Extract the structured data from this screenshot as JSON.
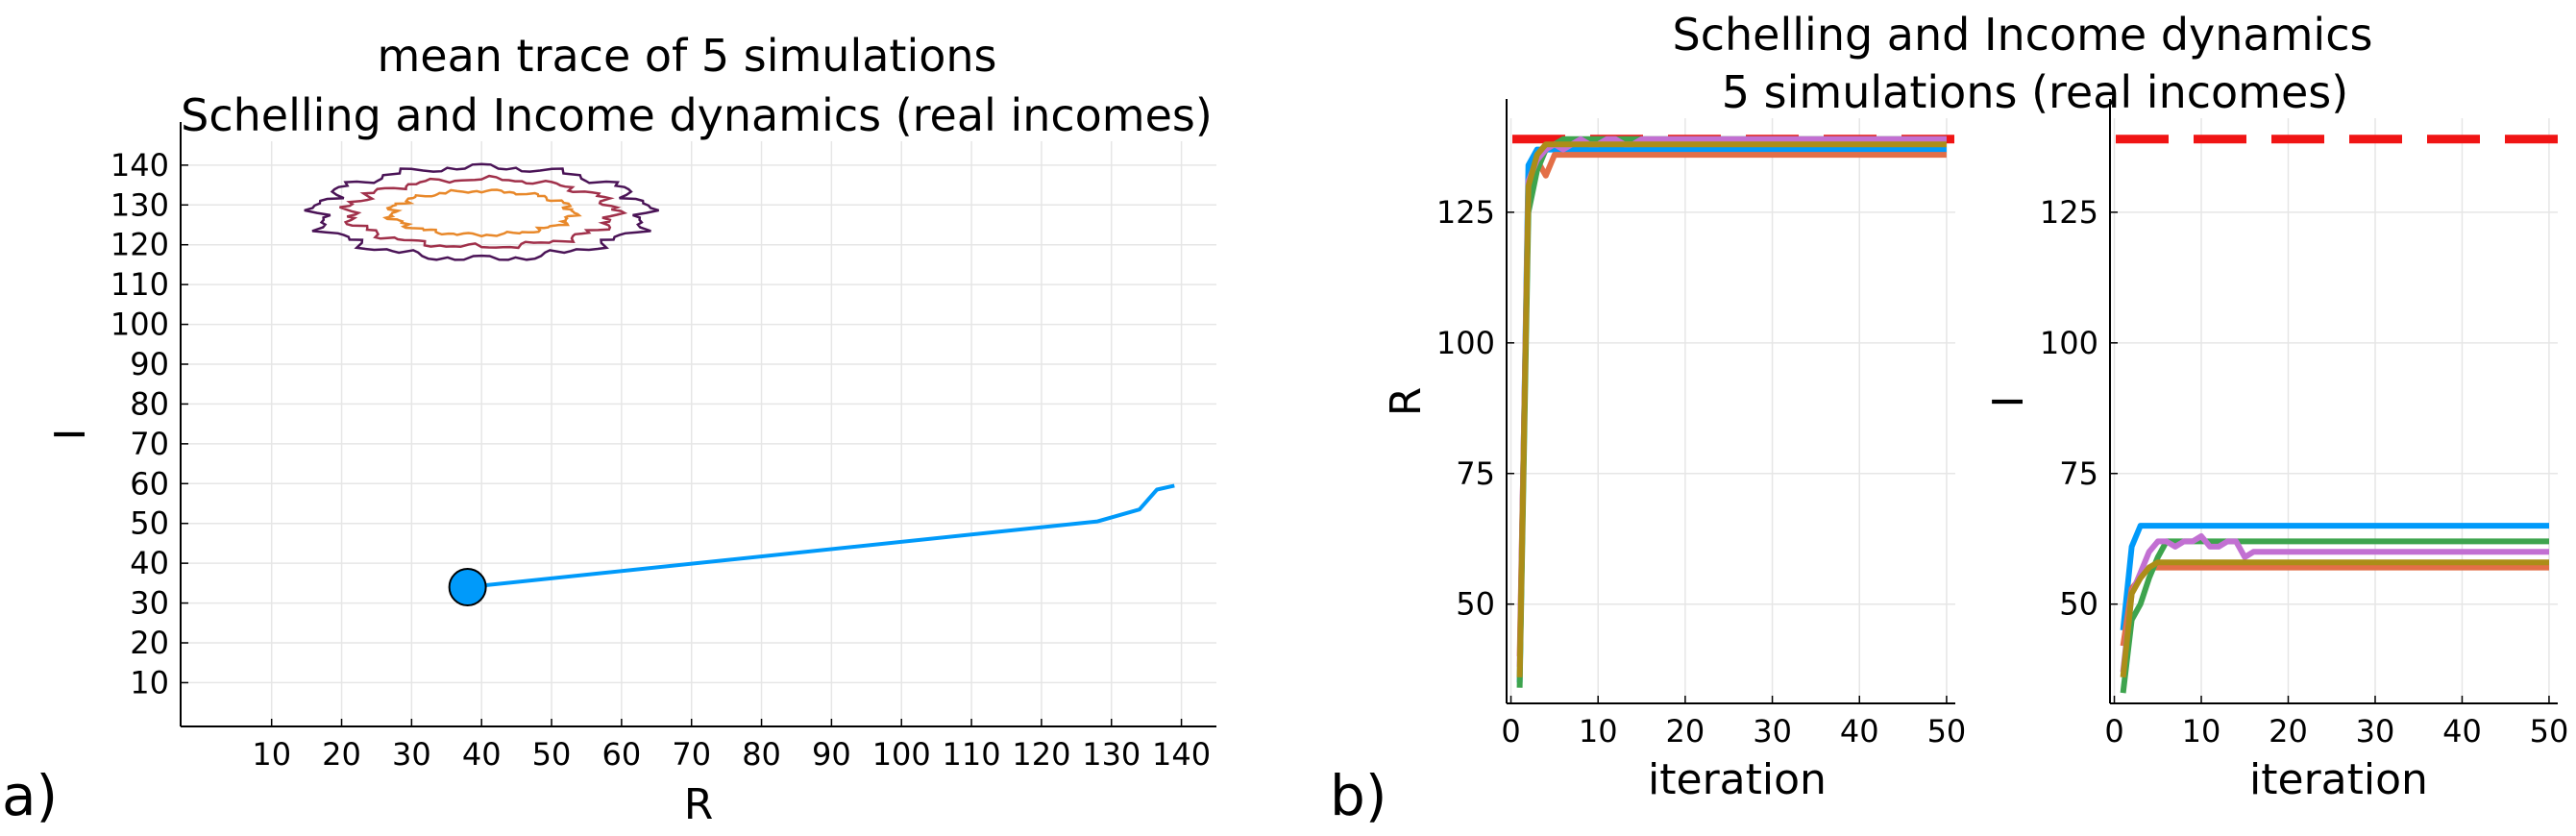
{
  "panel_labels": {
    "a": "a)",
    "b": "b)"
  },
  "series_colors": [
    "#009AFA",
    "#E36F47",
    "#3EA44E",
    "#C270D2",
    "#AC8D18"
  ],
  "chart_data": [
    {
      "type": "line",
      "title_lines": [
        "mean trace of 5 simulations",
        "Schelling and Income dynamics (real incomes)"
      ],
      "xlabel": "R",
      "ylabel": "I",
      "xlim": [
        -3,
        145
      ],
      "ylim": [
        -1,
        146
      ],
      "xticks": [
        10,
        20,
        30,
        40,
        50,
        60,
        70,
        80,
        90,
        100,
        110,
        120,
        130,
        140
      ],
      "yticks": [
        10,
        20,
        30,
        40,
        50,
        60,
        70,
        80,
        90,
        100,
        110,
        120,
        130,
        140
      ],
      "grid": true,
      "start_marker": {
        "x": 38,
        "y": 34,
        "color": "#009AFA"
      },
      "trace": {
        "color": "#009AFA",
        "x": [
          38,
          128,
          134,
          136.5,
          139
        ],
        "y": [
          34,
          50.5,
          53.5,
          58.5,
          59.5
        ]
      },
      "contours": [
        {
          "color": "#4A1356",
          "center": [
            40,
            128
          ],
          "rx": 23.5,
          "ry": 11.5
        },
        {
          "color": "#A0304A",
          "center": [
            40,
            128
          ],
          "rx": 19,
          "ry": 8.5
        },
        {
          "color": "#E8882A",
          "center": [
            40,
            128
          ],
          "rx": 13,
          "ry": 5.5
        }
      ]
    },
    {
      "type": "line",
      "title_lines": [
        "Schelling and Income dynamics",
        "5 simulations (real incomes)"
      ],
      "xlabel": "iteration",
      "ylabel": "R",
      "xlim": [
        -0.5,
        51
      ],
      "ylim": [
        31,
        143
      ],
      "xticks": [
        0,
        10,
        20,
        30,
        40,
        50
      ],
      "yticks": [
        50,
        75,
        100,
        125
      ],
      "grid": true,
      "reference_line": {
        "y": 139,
        "color": "#F01414"
      },
      "series": [
        {
          "values": [
            35,
            134,
            137,
            137,
            137,
            137,
            137,
            137,
            137,
            137,
            137,
            137,
            137,
            137,
            137,
            137,
            137,
            137,
            137,
            137,
            137,
            137,
            137,
            137,
            137,
            137,
            137,
            137,
            137,
            137,
            137,
            137,
            137,
            137,
            137,
            137,
            137,
            137,
            137,
            137,
            137,
            137,
            137,
            137,
            137,
            137,
            137,
            137,
            137,
            137
          ]
        },
        {
          "values": [
            40,
            128,
            135,
            132,
            136,
            136,
            136,
            136,
            136,
            136,
            136,
            136,
            136,
            136,
            136,
            136,
            136,
            136,
            136,
            136,
            136,
            136,
            136,
            136,
            136,
            136,
            136,
            136,
            136,
            136,
            136,
            136,
            136,
            136,
            136,
            136,
            136,
            136,
            136,
            136,
            136,
            136,
            136,
            136,
            136,
            136,
            136,
            136,
            136,
            136
          ]
        },
        {
          "values": [
            34,
            125,
            133,
            137,
            138,
            139,
            139,
            139,
            139,
            139,
            139,
            139,
            139,
            139,
            139,
            139,
            139,
            139,
            139,
            139,
            139,
            139,
            139,
            139,
            139,
            139,
            139,
            139,
            139,
            139,
            139,
            139,
            139,
            139,
            139,
            139,
            139,
            139,
            139,
            139,
            139,
            139,
            139,
            139,
            139,
            139,
            139,
            139,
            139,
            139
          ]
        },
        {
          "values": [
            38,
            131,
            135,
            137,
            138,
            137,
            138,
            139,
            138,
            138,
            139,
            139,
            138,
            138,
            139,
            139,
            139,
            139,
            139,
            139,
            139,
            139,
            139,
            139,
            139,
            139,
            139,
            139,
            139,
            139,
            139,
            139,
            139,
            139,
            139,
            139,
            139,
            139,
            139,
            139,
            139,
            139,
            139,
            139,
            139,
            139,
            139,
            139,
            139,
            139
          ]
        },
        {
          "values": [
            36,
            130,
            136,
            138,
            138,
            138,
            138,
            138,
            138,
            138,
            138,
            138,
            138,
            138,
            138,
            138,
            138,
            138,
            138,
            138,
            138,
            138,
            138,
            138,
            138,
            138,
            138,
            138,
            138,
            138,
            138,
            138,
            138,
            138,
            138,
            138,
            138,
            138,
            138,
            138,
            138,
            138,
            138,
            138,
            138,
            138,
            138,
            138,
            138,
            138
          ]
        }
      ]
    },
    {
      "type": "line",
      "title_lines": [],
      "xlabel": "iteration",
      "ylabel": "I",
      "xlim": [
        -0.5,
        51
      ],
      "ylim": [
        31,
        143
      ],
      "xticks": [
        0,
        10,
        20,
        30,
        40,
        50
      ],
      "yticks": [
        50,
        75,
        100,
        125
      ],
      "grid": true,
      "reference_line": {
        "y": 139,
        "color": "#F01414"
      },
      "series": [
        {
          "values": [
            45,
            61,
            65,
            65,
            65,
            65,
            65,
            65,
            65,
            65,
            65,
            65,
            65,
            65,
            65,
            65,
            65,
            65,
            65,
            65,
            65,
            65,
            65,
            65,
            65,
            65,
            65,
            65,
            65,
            65,
            65,
            65,
            65,
            65,
            65,
            65,
            65,
            65,
            65,
            65,
            65,
            65,
            65,
            65,
            65,
            65,
            65,
            65,
            65,
            65
          ]
        },
        {
          "values": [
            42,
            53,
            55,
            57,
            57,
            57,
            57,
            57,
            57,
            57,
            57,
            57,
            57,
            57,
            57,
            57,
            57,
            57,
            57,
            57,
            57,
            57,
            57,
            57,
            57,
            57,
            57,
            57,
            57,
            57,
            57,
            57,
            57,
            57,
            57,
            57,
            57,
            57,
            57,
            57,
            57,
            57,
            57,
            57,
            57,
            57,
            57,
            57,
            57,
            57
          ]
        },
        {
          "values": [
            33,
            47,
            50,
            55,
            59,
            62,
            62,
            62,
            62,
            62,
            62,
            62,
            62,
            62,
            62,
            62,
            62,
            62,
            62,
            62,
            62,
            62,
            62,
            62,
            62,
            62,
            62,
            62,
            62,
            62,
            62,
            62,
            62,
            62,
            62,
            62,
            62,
            62,
            62,
            62,
            62,
            62,
            62,
            62,
            62,
            62,
            62,
            62,
            62,
            62
          ]
        },
        {
          "values": [
            37,
            52,
            56,
            60,
            62,
            62,
            61,
            62,
            62,
            63,
            61,
            61,
            62,
            62,
            59,
            60,
            60,
            60,
            60,
            60,
            60,
            60,
            60,
            60,
            60,
            60,
            60,
            60,
            60,
            60,
            60,
            60,
            60,
            60,
            60,
            60,
            60,
            60,
            60,
            60,
            60,
            60,
            60,
            60,
            60,
            60,
            60,
            60,
            60,
            60
          ]
        },
        {
          "values": [
            36,
            52,
            55,
            57,
            58,
            58,
            58,
            58,
            58,
            58,
            58,
            58,
            58,
            58,
            58,
            58,
            58,
            58,
            58,
            58,
            58,
            58,
            58,
            58,
            58,
            58,
            58,
            58,
            58,
            58,
            58,
            58,
            58,
            58,
            58,
            58,
            58,
            58,
            58,
            58,
            58,
            58,
            58,
            58,
            58,
            58,
            58,
            58,
            58,
            58
          ]
        }
      ]
    }
  ]
}
